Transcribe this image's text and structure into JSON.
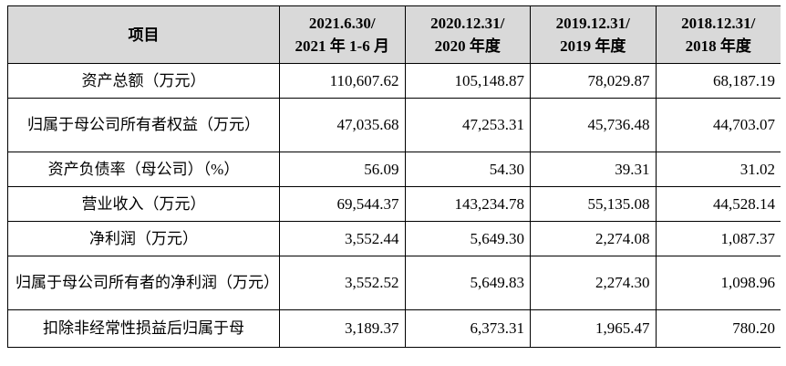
{
  "table": {
    "header": {
      "item": "项目",
      "periods": [
        {
          "line1": "2021.6.30/",
          "line2": "2021 年 1-6 月"
        },
        {
          "line1": "2020.12.31/",
          "line2": "2020 年度"
        },
        {
          "line1": "2019.12.31/",
          "line2": "2019 年度"
        },
        {
          "line1": "2018.12.31/",
          "line2": "2018 年度"
        }
      ]
    },
    "rows": [
      {
        "label": "资产总额（万元）",
        "values": [
          "110,607.62",
          "105,148.87",
          "78,029.87",
          "68,187.19"
        ]
      },
      {
        "label": "归属于母公司所有者权益（万元）",
        "values": [
          "47,035.68",
          "47,253.31",
          "45,736.48",
          "44,703.07"
        ]
      },
      {
        "label": "资产负债率（母公司）（%）",
        "values": [
          "56.09",
          "54.30",
          "39.31",
          "31.02"
        ]
      },
      {
        "label": "营业收入（万元）",
        "values": [
          "69,544.37",
          "143,234.78",
          "55,135.08",
          "44,528.14"
        ]
      },
      {
        "label": "净利润（万元）",
        "values": [
          "3,552.44",
          "5,649.30",
          "2,274.08",
          "1,087.37"
        ]
      },
      {
        "label": "归属于母公司所有者的净利润（万元）",
        "values": [
          "3,552.52",
          "5,649.83",
          "2,274.30",
          "1,098.96"
        ]
      },
      {
        "label": "扣除非经常性损益后归属于母",
        "values": [
          "3,189.37",
          "6,373.31",
          "1,965.47",
          "780.20"
        ]
      }
    ]
  }
}
